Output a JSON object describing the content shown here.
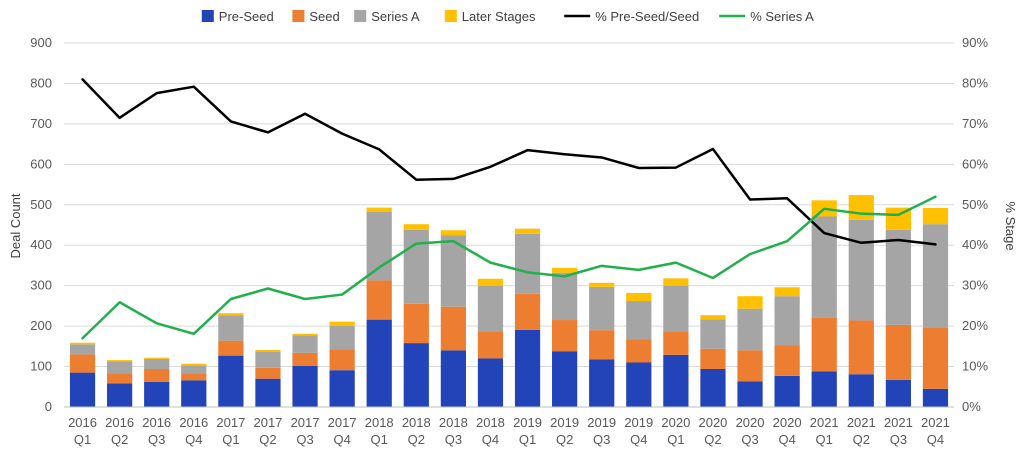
{
  "chart_data": {
    "type": "bar",
    "title": "",
    "xlabel": "",
    "ylabel": "Deal Count",
    "y2label": "% Stage",
    "ylim": [
      0,
      900
    ],
    "yticks": [
      0,
      100,
      200,
      300,
      400,
      500,
      600,
      700,
      800,
      900
    ],
    "y2lim": [
      0,
      0.9
    ],
    "y2ticks": [
      "0%",
      "10%",
      "20%",
      "30%",
      "40%",
      "50%",
      "60%",
      "70%",
      "80%",
      "90%"
    ],
    "categories": [
      [
        "2016",
        "Q1"
      ],
      [
        "2016",
        "Q2"
      ],
      [
        "2016",
        "Q3"
      ],
      [
        "2016",
        "Q4"
      ],
      [
        "2017",
        "Q1"
      ],
      [
        "2017",
        "Q2"
      ],
      [
        "2017",
        "Q3"
      ],
      [
        "2017",
        "Q4"
      ],
      [
        "2018",
        "Q1"
      ],
      [
        "2018",
        "Q2"
      ],
      [
        "2018",
        "Q3"
      ],
      [
        "2018",
        "Q4"
      ],
      [
        "2019",
        "Q1"
      ],
      [
        "2019",
        "Q2"
      ],
      [
        "2019",
        "Q3"
      ],
      [
        "2019",
        "Q4"
      ],
      [
        "2020",
        "Q1"
      ],
      [
        "2020",
        "Q2"
      ],
      [
        "2020",
        "Q3"
      ],
      [
        "2020",
        "Q4"
      ],
      [
        "2021",
        "Q1"
      ],
      [
        "2021",
        "Q2"
      ],
      [
        "2021",
        "Q3"
      ],
      [
        "2021",
        "Q4"
      ]
    ],
    "stacked": true,
    "series": [
      {
        "name": "Pre-Seed",
        "color": "#2244B8",
        "values": [
          85,
          58,
          62,
          66,
          127,
          70,
          102,
          91,
          216,
          158,
          140,
          120,
          191,
          138,
          118,
          110,
          129,
          94,
          63,
          77,
          88,
          81,
          67,
          45
        ]
      },
      {
        "name": "Seed",
        "color": "#ED7D31",
        "values": [
          45,
          25,
          32,
          17,
          37,
          27,
          32,
          52,
          97,
          97,
          108,
          67,
          89,
          77,
          72,
          57,
          58,
          50,
          77,
          76,
          133,
          133,
          136,
          152
        ]
      },
      {
        "name": "Series A",
        "color": "#A5A5A5",
        "values": [
          25,
          30,
          25,
          20,
          63,
          40,
          43,
          58,
          170,
          183,
          177,
          113,
          148,
          117,
          107,
          95,
          113,
          73,
          103,
          121,
          250,
          249,
          235,
          255
        ]
      },
      {
        "name": "Later Stages",
        "color": "#FFC000",
        "values": [
          4,
          3,
          3,
          4,
          5,
          4,
          4,
          10,
          10,
          14,
          12,
          17,
          13,
          12,
          10,
          20,
          18,
          10,
          31,
          22,
          40,
          61,
          55,
          40
        ]
      }
    ],
    "line_series": [
      {
        "name": "% Pre-Seed/Seed",
        "color": "#000000",
        "axis": "right",
        "values": [
          0.81,
          0.715,
          0.776,
          0.792,
          0.706,
          0.679,
          0.725,
          0.676,
          0.637,
          0.562,
          0.564,
          0.594,
          0.635,
          0.625,
          0.617,
          0.591,
          0.592,
          0.638,
          0.513,
          0.516,
          0.43,
          0.406,
          0.413,
          0.402
        ]
      },
      {
        "name": "% Series A",
        "color": "#21B04B",
        "axis": "right",
        "values": [
          0.17,
          0.259,
          0.207,
          0.181,
          0.267,
          0.293,
          0.267,
          0.278,
          0.345,
          0.404,
          0.41,
          0.357,
          0.333,
          0.323,
          0.349,
          0.339,
          0.357,
          0.319,
          0.378,
          0.41,
          0.49,
          0.478,
          0.475,
          0.52
        ]
      }
    ],
    "legend": {
      "position": "top",
      "entries": [
        "Pre-Seed",
        "Seed",
        "Series A",
        "Later Stages",
        "% Pre-Seed/Seed",
        "% Series A"
      ]
    },
    "grid": true
  }
}
